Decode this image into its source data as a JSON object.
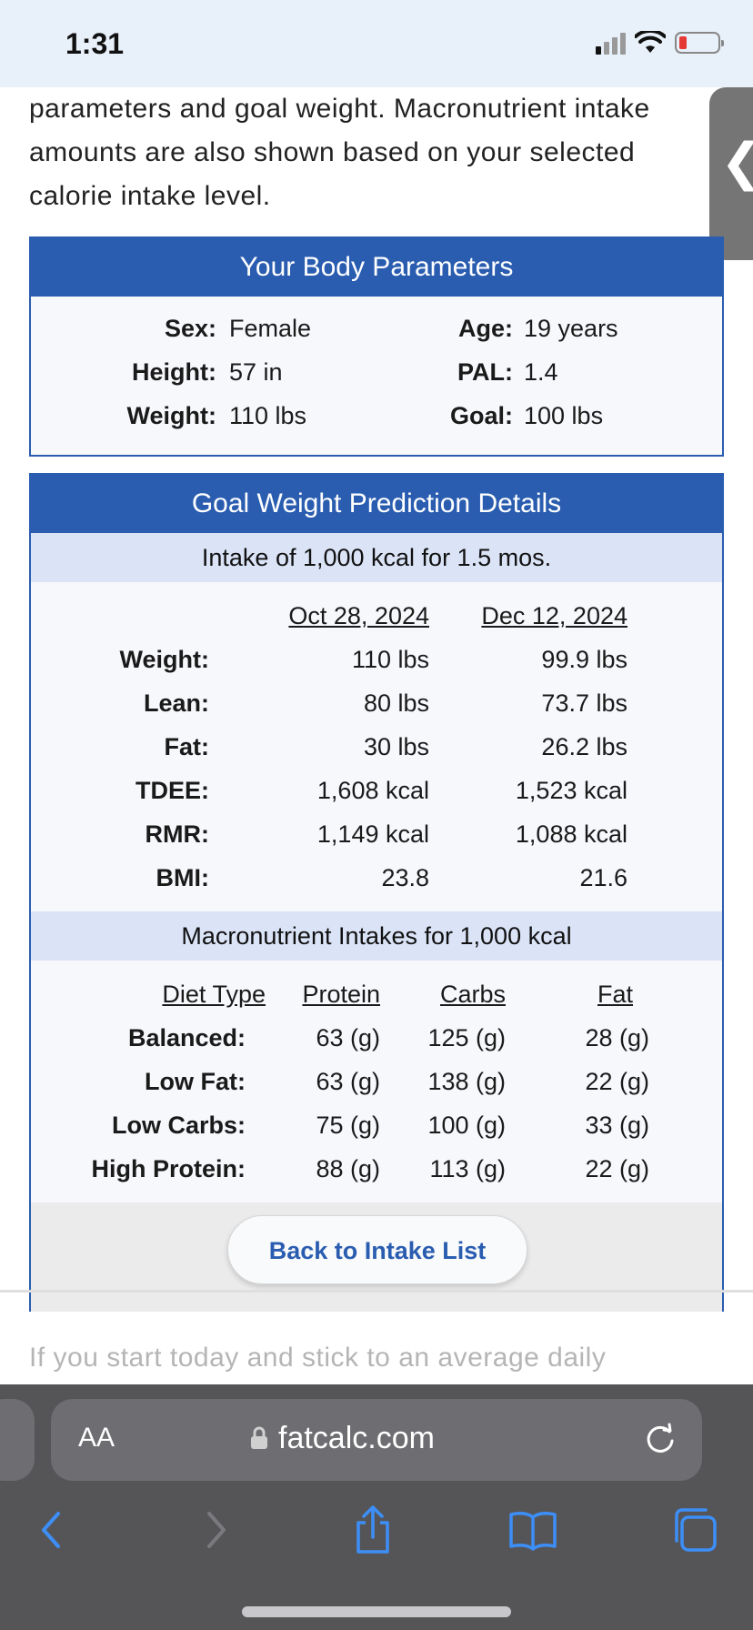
{
  "status_bar": {
    "time": "1:31"
  },
  "intro_text": "parameters and goal weight. Macronutrient intake amounts are also shown based on your selected calorie intake level.",
  "side_tab": {
    "icon": "chevron-left-icon",
    "glyph": "❮"
  },
  "body_parameters": {
    "title": "Your Body Parameters",
    "left": [
      {
        "label": "Sex:",
        "value": "Female"
      },
      {
        "label": "Height:",
        "value": "57 in"
      },
      {
        "label": "Weight:",
        "value": "110 lbs"
      }
    ],
    "right": [
      {
        "label": "Age:",
        "value": "19 years"
      },
      {
        "label": "PAL:",
        "value": "1.4"
      },
      {
        "label": "Goal:",
        "value": "100 lbs"
      }
    ]
  },
  "prediction": {
    "title": "Goal Weight Prediction Details",
    "subtitle": "Intake of 1,000 kcal for 1.5 mos.",
    "columns": [
      "Oct 28, 2024",
      "Dec 12, 2024"
    ],
    "rows": [
      {
        "label": "Weight:",
        "values": [
          "110 lbs",
          "99.9 lbs"
        ]
      },
      {
        "label": "Lean:",
        "values": [
          "80 lbs",
          "73.7 lbs"
        ]
      },
      {
        "label": "Fat:",
        "values": [
          "30 lbs",
          "26.2 lbs"
        ]
      },
      {
        "label": "TDEE:",
        "values": [
          "1,608 kcal",
          "1,523 kcal"
        ]
      },
      {
        "label": "RMR:",
        "values": [
          "1,149 kcal",
          "1,088 kcal"
        ]
      },
      {
        "label": "BMI:",
        "values": [
          "23.8",
          "21.6"
        ]
      }
    ]
  },
  "macros": {
    "title": "Macronutrient Intakes for 1,000 kcal",
    "headers": [
      "Diet Type",
      "Protein",
      "Carbs",
      "Fat"
    ],
    "rows": [
      {
        "label": "Balanced:",
        "values": [
          "63 (g)",
          "125 (g)",
          "28 (g)"
        ]
      },
      {
        "label": "Low Fat:",
        "values": [
          "63 (g)",
          "138 (g)",
          "22 (g)"
        ]
      },
      {
        "label": "Low Carbs:",
        "values": [
          "75 (g)",
          "100 (g)",
          "33 (g)"
        ]
      },
      {
        "label": "High Protein:",
        "values": [
          "88 (g)",
          "113 (g)",
          "22 (g)"
        ]
      }
    ]
  },
  "back_button": "Back to Intake List",
  "faded_text": "If you start today and stick to an average daily",
  "browser": {
    "aa_label": "AA",
    "url": "fatcalc.com",
    "icons": [
      "lock-icon",
      "reload-icon",
      "back-icon",
      "forward-icon",
      "share-icon",
      "bookmarks-icon",
      "tabs-icon"
    ]
  }
}
